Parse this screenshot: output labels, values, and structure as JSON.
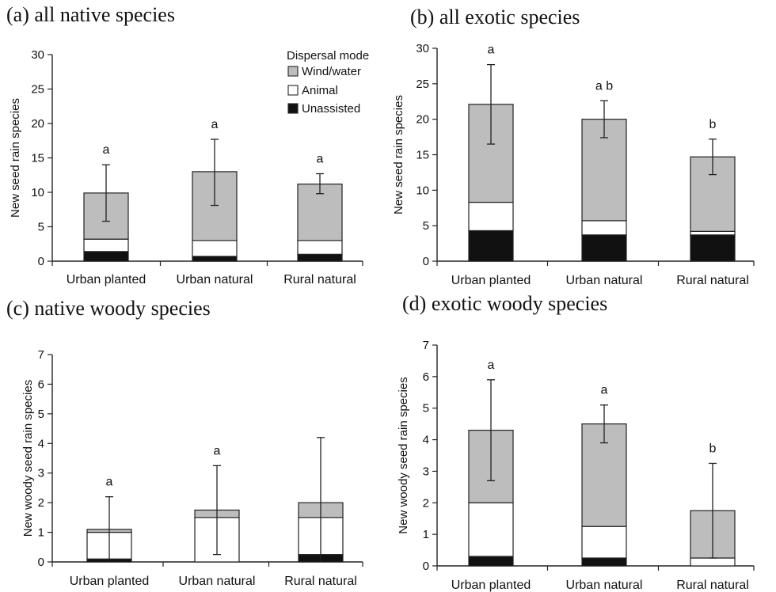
{
  "chart_data": [
    {
      "type": "bar",
      "stacked": true,
      "title": "(a) all native species",
      "ylabel": "New seed rain species",
      "categories": [
        "Urban planted",
        "Urban natural",
        "Rural natural"
      ],
      "ylim": [
        0,
        30
      ],
      "yticks": [
        0,
        5,
        10,
        15,
        20,
        25,
        30
      ],
      "series": [
        {
          "name": "Unassisted",
          "color": "#111111",
          "values": [
            1.4,
            0.7,
            1.0
          ]
        },
        {
          "name": "Animal",
          "color": "#ffffff",
          "values": [
            1.8,
            2.3,
            2.0
          ]
        },
        {
          "name": "Wind/water",
          "color": "#bdbdbd",
          "values": [
            6.7,
            10.0,
            8.2
          ]
        }
      ],
      "totals": [
        9.9,
        13.0,
        11.2
      ],
      "error_upper": [
        14.0,
        17.7,
        12.7
      ],
      "error_lower": [
        5.8,
        8.1,
        9.8
      ],
      "significance": [
        "a",
        "a",
        "a"
      ],
      "legend": {
        "title": "Dispersal mode",
        "items": [
          "Wind/water",
          "Animal",
          "Unassisted"
        ],
        "placement": "top-right"
      }
    },
    {
      "type": "bar",
      "stacked": true,
      "title": "(b) all exotic species",
      "ylabel": "New seed rain species",
      "categories": [
        "Urban planted",
        "Urban natural",
        "Rural natural"
      ],
      "ylim": [
        0,
        30
      ],
      "yticks": [
        0,
        5,
        10,
        15,
        20,
        25,
        30
      ],
      "series": [
        {
          "name": "Unassisted",
          "color": "#111111",
          "values": [
            4.3,
            3.7,
            3.7
          ]
        },
        {
          "name": "Animal",
          "color": "#ffffff",
          "values": [
            4.0,
            2.0,
            0.5
          ]
        },
        {
          "name": "Wind/water",
          "color": "#bdbdbd",
          "values": [
            13.8,
            14.3,
            10.5
          ]
        }
      ],
      "totals": [
        22.1,
        20.0,
        14.7
      ],
      "error_upper": [
        27.7,
        22.6,
        17.2
      ],
      "error_lower": [
        16.5,
        17.4,
        12.2
      ],
      "significance": [
        "a",
        "a b",
        "b"
      ]
    },
    {
      "type": "bar",
      "stacked": true,
      "title": "(c) native woody species",
      "ylabel": "New woody seed rain species",
      "categories": [
        "Urban planted",
        "Urban natural",
        "Rural natural"
      ],
      "ylim": [
        0,
        7
      ],
      "yticks": [
        0,
        1,
        2,
        3,
        4,
        5,
        6,
        7
      ],
      "series": [
        {
          "name": "Unassisted",
          "color": "#111111",
          "values": [
            0.1,
            0.0,
            0.25
          ]
        },
        {
          "name": "Animal",
          "color": "#ffffff",
          "values": [
            0.9,
            1.5,
            1.25
          ]
        },
        {
          "name": "Wind/water",
          "color": "#bdbdbd",
          "values": [
            0.1,
            0.25,
            0.5
          ]
        }
      ],
      "totals": [
        1.1,
        1.75,
        2.0
      ],
      "error_upper": [
        2.2,
        3.25,
        4.2
      ],
      "error_lower": [
        0.0,
        0.25,
        0.0
      ],
      "significance": [
        "a",
        "a",
        ""
      ]
    },
    {
      "type": "bar",
      "stacked": true,
      "title": "(d) exotic woody species",
      "ylabel": "New woody seed rain species",
      "categories": [
        "Urban planted",
        "Urban natural",
        "Rural natural"
      ],
      "ylim": [
        0,
        7
      ],
      "yticks": [
        0,
        1,
        2,
        3,
        4,
        5,
        6,
        7
      ],
      "series": [
        {
          "name": "Unassisted",
          "color": "#111111",
          "values": [
            0.3,
            0.25,
            0.0
          ]
        },
        {
          "name": "Animal",
          "color": "#ffffff",
          "values": [
            1.7,
            1.0,
            0.25
          ]
        },
        {
          "name": "Wind/water",
          "color": "#bdbdbd",
          "values": [
            2.3,
            3.25,
            1.5
          ]
        }
      ],
      "totals": [
        4.3,
        4.5,
        1.75
      ],
      "error_upper": [
        5.9,
        5.1,
        3.25
      ],
      "error_lower": [
        2.7,
        3.9,
        0.25
      ],
      "significance": [
        "a",
        "a",
        "b"
      ]
    }
  ]
}
